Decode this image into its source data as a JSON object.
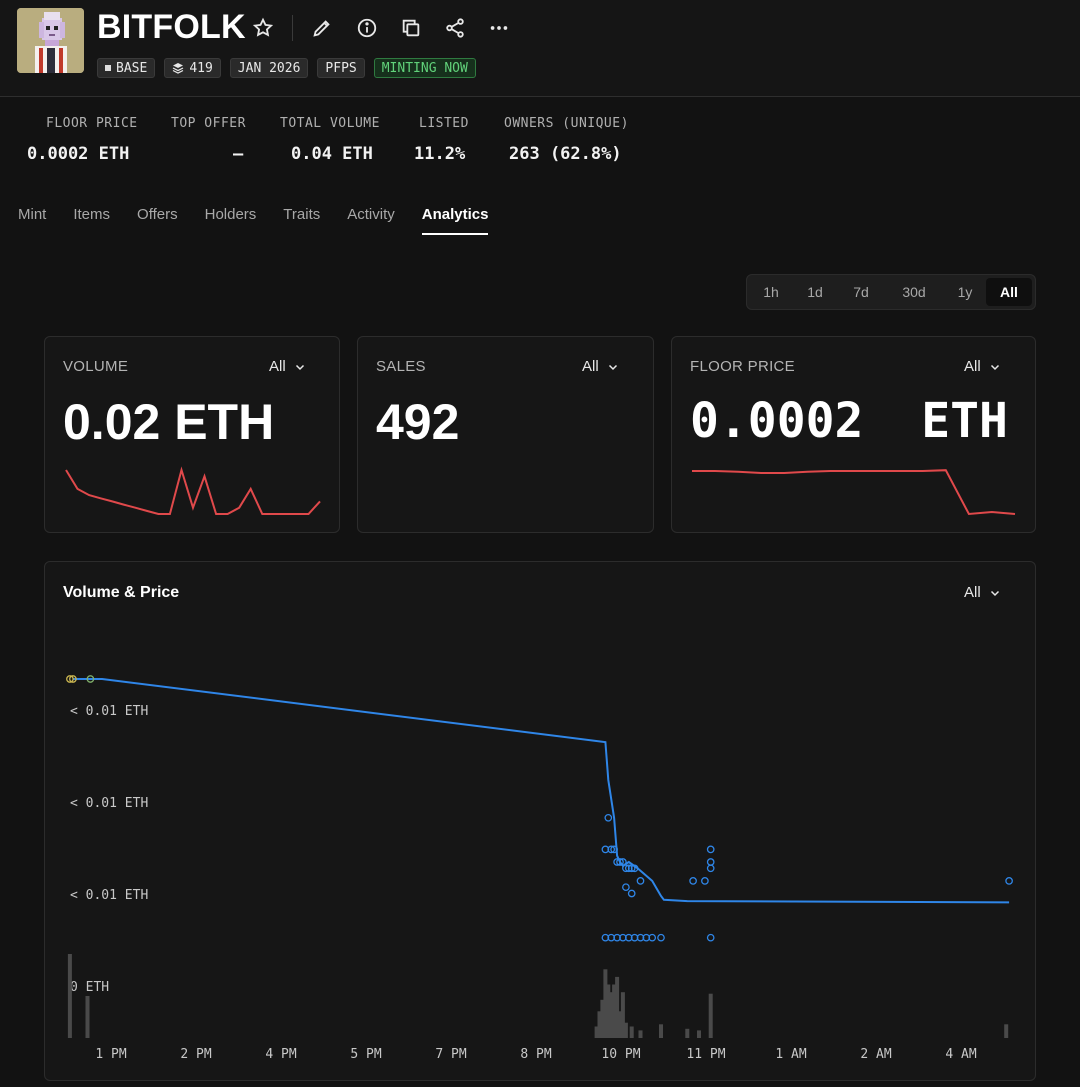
{
  "collection": {
    "name": "BITFOLK",
    "tags": [
      {
        "label": "BASE",
        "kind": "chain"
      },
      {
        "label": "419",
        "kind": "supply"
      },
      {
        "label": "JAN 2026",
        "kind": "date"
      },
      {
        "label": "PFPS",
        "kind": "category"
      },
      {
        "label": "MINTING NOW",
        "kind": "status"
      }
    ],
    "icons": [
      "star-icon",
      "pencil-icon",
      "info-icon",
      "copy-icon",
      "share-icon",
      "more-icon"
    ]
  },
  "stats": [
    {
      "label": "FLOOR PRICE",
      "value": "0.0002 ETH"
    },
    {
      "label": "TOP OFFER",
      "value": "–"
    },
    {
      "label": "TOTAL VOLUME",
      "value": "0.04 ETH"
    },
    {
      "label": "LISTED",
      "value": "11.2%"
    },
    {
      "label": "OWNERS (UNIQUE)",
      "value": "263 (62.8%)"
    }
  ],
  "tabs": [
    "Mint",
    "Items",
    "Offers",
    "Holders",
    "Traits",
    "Activity",
    "Analytics"
  ],
  "active_tab": "Analytics",
  "time_ranges": [
    "1h",
    "1d",
    "7d",
    "30d",
    "1y",
    "All"
  ],
  "active_range": "All",
  "cards": {
    "volume": {
      "label": "VOLUME",
      "filter": "All",
      "value": "0.02 ETH"
    },
    "sales": {
      "label": "SALES",
      "filter": "All",
      "value": "492"
    },
    "floor": {
      "label": "FLOOR PRICE",
      "filter": "All",
      "value": "0.0002  ETH"
    }
  },
  "colors": {
    "accent_blue": "#2f86e8",
    "spark_red": "#e0494b",
    "minting_green": "#61d27a",
    "bar_gray": "#4a4a4a"
  },
  "chart_data": {
    "type": "line",
    "title": "Volume & Price",
    "filter": "All",
    "y_tick_labels": [
      "< 0.01 ETH",
      "< 0.01 ETH",
      "< 0.01 ETH",
      "0 ETH"
    ],
    "x_tick_labels": [
      "1 PM",
      "2 PM",
      "4 PM",
      "5 PM",
      "7 PM",
      "8 PM",
      "10 PM",
      "11 PM",
      "1 AM",
      "2 AM",
      "4 AM"
    ],
    "x_range_hours": [
      12.4,
      28.6
    ],
    "series": [
      {
        "kind": "floor-line",
        "x": [
          12.5,
          13.0,
          21.6,
          21.65,
          21.75,
          21.8,
          21.85,
          21.9,
          22.0,
          22.15,
          22.4,
          22.55,
          22.6,
          23.0,
          28.5
        ],
        "y": [
          0.00031,
          0.00031,
          0.00026,
          0.00023,
          0.0002,
          0.00017,
          0.000165,
          0.000162,
          0.000165,
          0.00016,
          0.00015,
          0.000138,
          0.000135,
          0.000134,
          0.000133
        ]
      },
      {
        "kind": "sales",
        "x": [
          12.45,
          12.5,
          12.8,
          21.65,
          21.6,
          21.7,
          21.75,
          21.8,
          21.85,
          21.9,
          21.95,
          22.0,
          22.05,
          22.1,
          21.95,
          22.05,
          22.2,
          21.6,
          21.7,
          21.8,
          21.9,
          22.0,
          22.1,
          22.2,
          22.3,
          22.4,
          22.55,
          23.1,
          23.3,
          23.4,
          23.4,
          23.4,
          23.4,
          28.5
        ],
        "y": [
          0.00031,
          0.00031,
          0.00031,
          0.0002,
          0.000175,
          0.000175,
          0.000175,
          0.000165,
          0.000165,
          0.000165,
          0.00016,
          0.00016,
          0.00016,
          0.00016,
          0.000145,
          0.00014,
          0.00015,
          0.000105,
          0.000105,
          0.000105,
          0.000105,
          0.000105,
          0.000105,
          0.000105,
          0.000105,
          0.000105,
          0.000105,
          0.00015,
          0.00015,
          0.000175,
          0.000165,
          0.00016,
          0.000105,
          0.00015
        ]
      },
      {
        "kind": "volume-bars",
        "x": [
          12.45,
          12.75,
          21.45,
          21.5,
          21.55,
          21.6,
          21.65,
          21.7,
          21.75,
          21.8,
          21.85,
          21.9,
          21.95,
          22.05,
          22.2,
          22.55,
          23.0,
          23.2,
          23.4,
          28.45
        ],
        "y": [
          0.0011,
          0.00055,
          0.00015,
          0.00035,
          0.0005,
          0.0009,
          0.0007,
          0.0006,
          0.0007,
          0.0008,
          0.00035,
          0.0006,
          0.0002,
          0.00015,
          0.0001,
          0.00018,
          0.00012,
          0.0001,
          0.00058,
          0.00018
        ]
      }
    ]
  },
  "volume_sparkline": [
    0.0009,
    0.0006,
    0.0005,
    0.00045,
    0.0004,
    0.00035,
    0.0003,
    0.00025,
    0.0002,
    0.0002,
    0.0009,
    0.0003,
    0.0008,
    0.0002,
    0.0002,
    0.0003,
    0.0006,
    0.0002,
    0.0002,
    0.0002,
    0.0002,
    0.0002,
    0.0004
  ],
  "floor_sparkline": [
    0.00031,
    0.00031,
    0.000308,
    0.000305,
    0.000305,
    0.000308,
    0.00031,
    0.00031,
    0.00031,
    0.00031,
    0.00031,
    0.000312,
    0.0002,
    0.000205,
    0.0002
  ]
}
